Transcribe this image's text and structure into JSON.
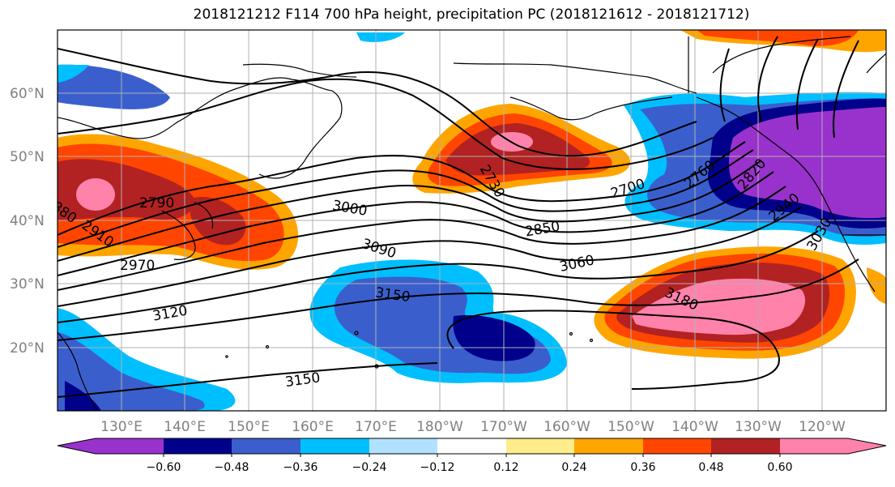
{
  "title": "2018121212 F114 700 hPa height, precipitation PC (2018121612 - 2018121712)",
  "latitude_labels": [
    "60°N",
    "50°N",
    "40°N",
    "30°N",
    "20°N"
  ],
  "longitude_labels": [
    "130°E",
    "140°E",
    "150°E",
    "160°E",
    "170°E",
    "180°W",
    "170°W",
    "160°W",
    "150°W",
    "140°W",
    "130°W",
    "120°W"
  ],
  "contour_labels": [
    "2790",
    "880",
    "2910",
    "2970",
    "3000",
    "3090",
    "3150",
    "3120",
    "3150",
    "2730",
    "2700",
    "2760",
    "2850",
    "3060",
    "2820",
    "2940",
    "3030",
    "3180"
  ],
  "colorbar": {
    "tick_labels": [
      "−0.60",
      "−0.48",
      "−0.36",
      "−0.24",
      "−0.12",
      "0.12",
      "0.24",
      "0.36",
      "0.48",
      "0.60"
    ],
    "colors": [
      "#9932cc",
      "#00008b",
      "#3a5fcd",
      "#00bfff",
      "#b0e2ff",
      "#ffffff",
      "#ffec8b",
      "#ffa500",
      "#ff4500",
      "#b22222",
      "#ff82ab"
    ]
  },
  "legend_colors": {
    "neg_deep": "#9932cc",
    "neg_dark": "#00008b",
    "neg_mid": "#3a5fcd",
    "neg_light": "#00bfff",
    "neg_pale": "#b0e2ff",
    "pos_pale": "#ffec8b",
    "pos_light": "#ffa500",
    "pos_mid": "#ff4500",
    "pos_dark": "#b22222",
    "pos_deep": "#ff82ab"
  }
}
